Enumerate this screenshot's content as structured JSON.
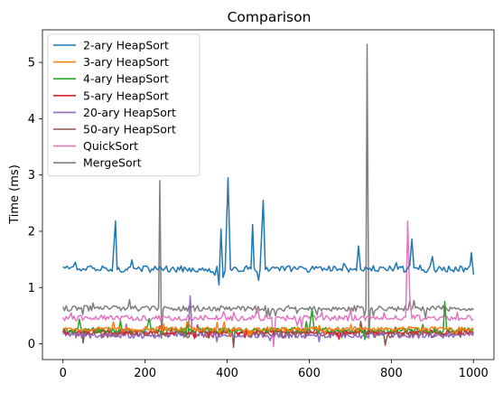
{
  "chart_data": {
    "type": "line",
    "title": "Comparison",
    "xlabel": "",
    "ylabel": "Time (ms)",
    "xlim": [
      -50,
      1050
    ],
    "ylim": [
      -0.28,
      5.58
    ],
    "xticks": [
      0,
      200,
      400,
      600,
      800,
      1000
    ],
    "yticks": [
      0,
      1,
      2,
      3,
      4,
      5
    ],
    "grid": false,
    "legend": "top-left",
    "series": [
      {
        "name": "2-ary HeapSort",
        "color": "#1f77b4",
        "baseline": 1.33,
        "noise": 0.06,
        "points": [
          [
            0,
            1.37
          ],
          [
            10,
            1.38
          ],
          [
            20,
            1.36
          ],
          [
            30,
            1.45
          ],
          [
            40,
            1.33
          ],
          [
            60,
            1.37
          ],
          [
            80,
            1.3
          ],
          [
            100,
            1.35
          ],
          [
            120,
            1.29
          ],
          [
            128,
            2.18
          ],
          [
            132,
            1.32
          ],
          [
            160,
            1.36
          ],
          [
            180,
            1.33
          ],
          [
            200,
            1.38
          ],
          [
            220,
            1.31
          ],
          [
            240,
            1.34
          ],
          [
            260,
            1.28
          ],
          [
            280,
            1.36
          ],
          [
            300,
            1.33
          ],
          [
            320,
            1.3
          ],
          [
            340,
            1.35
          ],
          [
            360,
            1.27
          ],
          [
            370,
            1.22
          ],
          [
            380,
            1.05
          ],
          [
            385,
            2.04
          ],
          [
            390,
            1.18
          ],
          [
            395,
            1.3
          ],
          [
            402,
            2.95
          ],
          [
            408,
            1.32
          ],
          [
            420,
            1.36
          ],
          [
            440,
            1.29
          ],
          [
            458,
            1.33
          ],
          [
            462,
            2.12
          ],
          [
            466,
            1.34
          ],
          [
            480,
            1.31
          ],
          [
            488,
            2.55
          ],
          [
            493,
            1.32
          ],
          [
            520,
            1.36
          ],
          [
            540,
            1.3
          ],
          [
            560,
            1.34
          ],
          [
            580,
            1.37
          ],
          [
            600,
            1.28
          ],
          [
            620,
            1.35
          ],
          [
            640,
            1.32
          ],
          [
            660,
            1.38
          ],
          [
            680,
            1.3
          ],
          [
            700,
            1.34
          ],
          [
            715,
            1.3
          ],
          [
            720,
            1.74
          ],
          [
            725,
            1.32
          ],
          [
            740,
            1.35
          ],
          [
            760,
            1.3
          ],
          [
            780,
            1.36
          ],
          [
            800,
            1.33
          ],
          [
            820,
            1.37
          ],
          [
            835,
            1.29
          ],
          [
            845,
            1.4
          ],
          [
            850,
            1.86
          ],
          [
            855,
            1.35
          ],
          [
            870,
            1.4
          ],
          [
            890,
            1.32
          ],
          [
            900,
            1.55
          ],
          [
            905,
            1.31
          ],
          [
            920,
            1.35
          ],
          [
            940,
            1.38
          ],
          [
            960,
            1.31
          ],
          [
            980,
            1.35
          ],
          [
            992,
            1.4
          ],
          [
            995,
            1.62
          ],
          [
            1000,
            1.23
          ]
        ]
      },
      {
        "name": "3-ary HeapSort",
        "color": "#ff7f0e",
        "baseline": 0.26,
        "noise": 0.04,
        "points": [
          [
            0,
            0.27
          ],
          [
            200,
            0.3
          ],
          [
            400,
            0.27
          ],
          [
            600,
            0.28
          ],
          [
            800,
            0.26
          ],
          [
            1000,
            0.27
          ]
        ]
      },
      {
        "name": "4-ary HeapSort",
        "color": "#2ca02c",
        "baseline": 0.24,
        "noise": 0.05,
        "points": [
          [
            0,
            0.24
          ],
          [
            40,
            0.44
          ],
          [
            45,
            0.24
          ],
          [
            200,
            0.25
          ],
          [
            210,
            0.45
          ],
          [
            215,
            0.24
          ],
          [
            600,
            0.25
          ],
          [
            607,
            0.62
          ],
          [
            612,
            0.25
          ],
          [
            700,
            0.24
          ],
          [
            930,
            0.75
          ],
          [
            935,
            0.25
          ],
          [
            1000,
            0.24
          ]
        ]
      },
      {
        "name": "5-ary HeapSort",
        "color": "#d62728",
        "baseline": 0.21,
        "noise": 0.04,
        "points": [
          [
            0,
            0.22
          ],
          [
            500,
            0.21
          ],
          [
            1000,
            0.21
          ]
        ]
      },
      {
        "name": "20-ary HeapSort",
        "color": "#9467bd",
        "baseline": 0.16,
        "noise": 0.06,
        "points": [
          [
            0,
            0.17
          ],
          [
            305,
            0.17
          ],
          [
            310,
            0.85
          ],
          [
            315,
            0.18
          ],
          [
            1000,
            0.15
          ]
        ]
      },
      {
        "name": "50-ary HeapSort",
        "color": "#8c564b",
        "baseline": 0.19,
        "noise": 0.08,
        "points": [
          [
            0,
            0.2
          ],
          [
            500,
            0.19
          ],
          [
            1000,
            0.2
          ]
        ]
      },
      {
        "name": "QuickSort",
        "color": "#e377c2",
        "baseline": 0.46,
        "noise": 0.05,
        "points": [
          [
            0,
            0.47
          ],
          [
            20,
            0.55
          ],
          [
            500,
            0.45
          ],
          [
            513,
            -0.05
          ],
          [
            518,
            0.46
          ],
          [
            835,
            0.48
          ],
          [
            840,
            2.18
          ],
          [
            845,
            0.8
          ],
          [
            850,
            0.45
          ],
          [
            1000,
            0.43
          ]
        ]
      },
      {
        "name": "MergeSort",
        "color": "#7f7f7f",
        "baseline": 0.63,
        "noise": 0.05,
        "points": [
          [
            0,
            0.66
          ],
          [
            20,
            0.6
          ],
          [
            233,
            0.64
          ],
          [
            236,
            2.9
          ],
          [
            240,
            0.1
          ],
          [
            244,
            0.62
          ],
          [
            500,
            0.63
          ],
          [
            738,
            0.62
          ],
          [
            741,
            5.32
          ],
          [
            745,
            0.1
          ],
          [
            749,
            0.62
          ],
          [
            1000,
            0.6
          ]
        ]
      }
    ]
  }
}
